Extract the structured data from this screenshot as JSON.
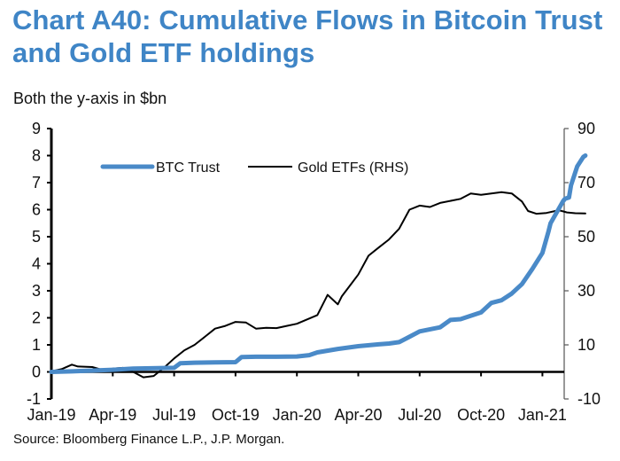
{
  "chart_data": {
    "type": "line",
    "title": "Chart A40: Cumulative Flows in Bitcoin Trust and Gold ETF holdings",
    "subtitle": "Both the y-axis in $bn",
    "source": "Source: Bloomberg Finance L.P., J.P. Morgan.",
    "xlabel": "",
    "ylabel_left": "",
    "ylabel_right": "",
    "x_ticks": [
      "Jan-19",
      "Apr-19",
      "Jul-19",
      "Oct-19",
      "Jan-20",
      "Apr-20",
      "Jul-20",
      "Oct-20",
      "Jan-21"
    ],
    "y_left": {
      "ticks": [
        "9",
        "8",
        "7",
        "6",
        "5",
        "4",
        "3",
        "2",
        "1",
        "0",
        "-1"
      ],
      "ylim": [
        -1,
        9
      ]
    },
    "y_right": {
      "ticks": [
        "90",
        "70",
        "50",
        "30",
        "10",
        "-10"
      ],
      "ylim": [
        -10,
        90
      ]
    },
    "grid": false,
    "legend_position": "top-left",
    "series": [
      {
        "name": "BTC Trust",
        "axis": "left",
        "color": "#4a8ac8",
        "x_months": [
          0,
          1,
          2,
          3,
          4,
          4.6,
          5.2,
          6.0,
          6.3,
          7,
          8,
          9,
          9.3,
          10,
          11,
          12,
          12.6,
          13,
          14,
          15,
          16,
          16.5,
          17,
          17.5,
          18,
          19,
          19.5,
          20,
          21,
          21.5,
          22,
          22.5,
          23,
          23.5,
          24,
          24.3,
          24.4,
          25.0,
          25.1,
          25.3,
          25.4,
          25.7,
          26.0,
          26.1
        ],
        "values": [
          0.0,
          0.02,
          0.05,
          0.08,
          0.12,
          0.13,
          0.14,
          0.15,
          0.32,
          0.34,
          0.35,
          0.36,
          0.55,
          0.56,
          0.56,
          0.57,
          0.62,
          0.72,
          0.85,
          0.95,
          1.02,
          1.05,
          1.1,
          1.3,
          1.5,
          1.65,
          1.92,
          1.95,
          2.2,
          2.55,
          2.65,
          2.9,
          3.25,
          3.8,
          4.4,
          5.2,
          5.5,
          6.3,
          6.4,
          6.45,
          6.9,
          7.6,
          7.95,
          8.0
        ]
      },
      {
        "name": "Gold ETFs (RHS)",
        "axis": "right",
        "color": "#000000",
        "x_months": [
          0,
          0.5,
          1,
          1.3,
          2,
          2.6,
          3,
          3.5,
          4,
          4.5,
          5,
          5.5,
          6,
          6.5,
          7,
          7.5,
          8,
          8.5,
          9,
          9.5,
          10,
          10.5,
          11,
          11.5,
          12,
          13,
          13.5,
          14,
          14.2,
          14.6,
          15,
          15.5,
          16,
          16.5,
          17,
          17.5,
          18,
          18.5,
          19,
          20,
          20.5,
          21,
          22,
          22.5,
          23,
          23.3,
          23.7,
          24.2,
          24.8,
          25.2,
          25.6,
          26.1
        ],
        "values": [
          0.2,
          1.0,
          2.7,
          2.0,
          1.8,
          0.5,
          1.2,
          1.5,
          0.0,
          -2.0,
          -1.5,
          1.5,
          5.0,
          8.0,
          10.0,
          13.0,
          16.0,
          17.0,
          18.5,
          18.3,
          16.0,
          16.3,
          16.2,
          17.0,
          17.8,
          21.0,
          28.5,
          25.0,
          28.0,
          32.0,
          36.0,
          43.0,
          46.0,
          49.0,
          53.0,
          60.0,
          61.5,
          61.0,
          62.5,
          64.0,
          66.0,
          65.5,
          66.5,
          66.0,
          63.0,
          59.5,
          58.5,
          58.8,
          59.8,
          59.0,
          58.7,
          58.6
        ]
      }
    ]
  }
}
